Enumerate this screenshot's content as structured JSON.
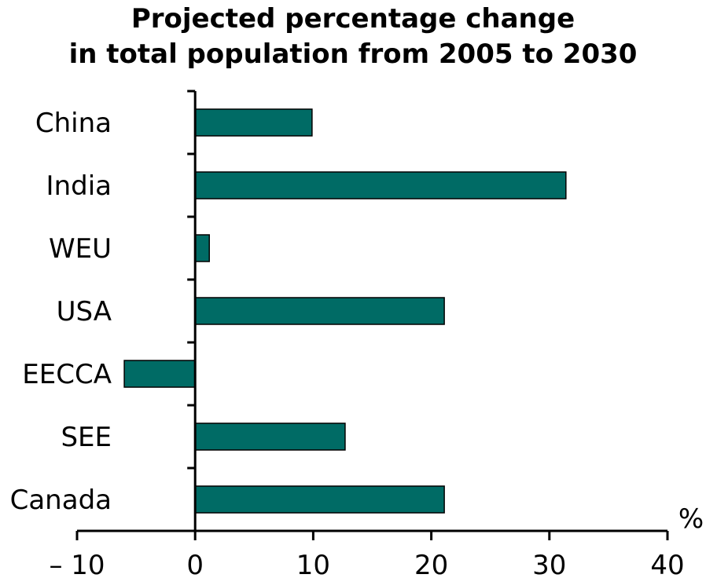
{
  "chart_data": {
    "type": "bar",
    "orientation": "horizontal",
    "title_lines": [
      "Projected percentage change",
      "in total population from 2005 to 2030"
    ],
    "categories": [
      "China",
      "India",
      "WEU",
      "USA",
      "EECCA",
      "SEE",
      "Canada"
    ],
    "values": [
      9.9,
      31.4,
      1.2,
      21.1,
      -6.0,
      12.7,
      21.1
    ],
    "xlim": [
      -10,
      40
    ],
    "xticks": [
      -10,
      0,
      10,
      20,
      30,
      40
    ],
    "xtick_labels": [
      "– 10",
      "0",
      "10",
      "20",
      "30",
      "40"
    ],
    "unit": "%",
    "bar_color": "#006b65",
    "grid": false,
    "legend": "none"
  }
}
